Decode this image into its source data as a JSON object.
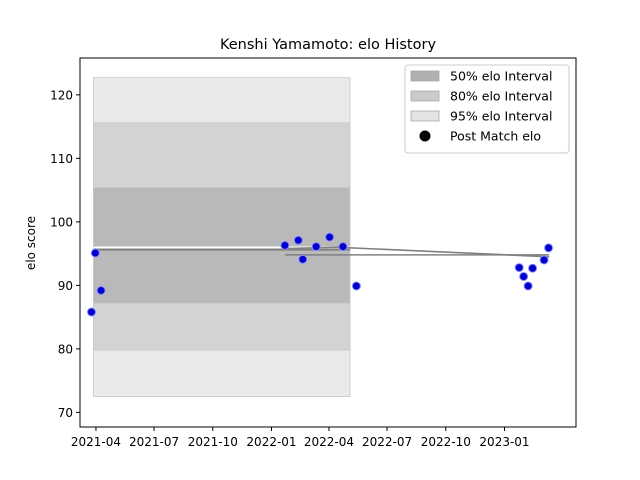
{
  "chart_data": {
    "type": "scatter",
    "title": "Kenshi Yamamoto: elo History",
    "xlabel": "",
    "ylabel": "elo score",
    "x_range": [
      "2021-03-07",
      "2023-04-23"
    ],
    "ylim": [
      67.7,
      125.8
    ],
    "x_ticks": [
      "2021-04",
      "2021-07",
      "2021-10",
      "2022-01",
      "2022-04",
      "2022-07",
      "2022-10",
      "2023-01"
    ],
    "y_ticks": [
      70,
      80,
      90,
      100,
      110,
      120
    ],
    "grid": false,
    "legend_position": "upper-right",
    "legend": [
      {
        "label": "50% elo Interval",
        "color": "#b0b0b0"
      },
      {
        "label": "80% elo Interval",
        "color": "#cbcbcb"
      },
      {
        "label": "95% elo Interval",
        "color": "#e3e3e3"
      },
      {
        "label": "Post Match elo",
        "color": "#000000"
      }
    ],
    "intervals": {
      "x": [
        "2021-03-28",
        "2022-05-04"
      ],
      "p50": [
        87.2,
        105.4
      ],
      "p80": [
        79.8,
        115.6
      ],
      "p95": [
        72.5,
        122.7
      ]
    },
    "mean_lines": [
      {
        "x": [
          "2021-03-28",
          "2022-05-04"
        ],
        "y": [
          96.0,
          96.0
        ],
        "color": "#ffffff"
      },
      {
        "x": [
          "2021-03-28",
          "2022-05-04"
        ],
        "y": [
          95.6,
          95.6
        ],
        "color": "#808080"
      },
      {
        "x": [
          "2022-01-22",
          "2022-04-15",
          "2023-03-12"
        ],
        "y": [
          95.8,
          96.0,
          94.5
        ],
        "color": "#808080"
      },
      {
        "x": [
          "2022-01-22",
          "2023-03-12"
        ],
        "y": [
          94.8,
          94.8
        ],
        "color": "#808080"
      }
    ],
    "points": {
      "x": [
        "2021-03-25",
        "2021-03-31",
        "2021-04-09",
        "2022-01-22",
        "2022-02-12",
        "2022-02-19",
        "2022-03-12",
        "2022-04-02",
        "2022-04-23",
        "2022-05-14",
        "2023-01-24",
        "2023-01-31",
        "2023-02-07",
        "2023-02-14",
        "2023-03-04",
        "2023-03-11"
      ],
      "y": [
        85.8,
        95.1,
        89.2,
        96.3,
        97.1,
        94.1,
        96.1,
        97.6,
        96.1,
        89.9,
        92.8,
        91.4,
        89.9,
        92.7,
        94.0,
        95.9
      ],
      "color": "#0000cc"
    }
  }
}
